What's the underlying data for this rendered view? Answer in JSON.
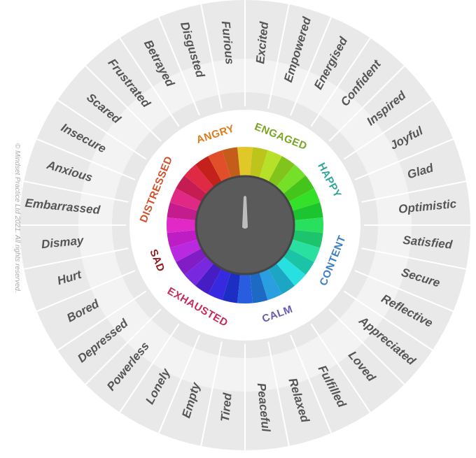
{
  "words": [
    "Excited",
    "Empowered",
    "Energised",
    "Confident",
    "Inspired",
    "Joyful",
    "Glad",
    "Optimistic",
    "Satisfied",
    "Secure",
    "Reflective",
    "Appreciated",
    "Loved",
    "Fulfilled",
    "Relaxed",
    "Peaceful",
    "Tired",
    "Empty",
    "Lonely",
    "Powerless",
    "Depressed",
    "Bored",
    "Hurt",
    "Dismay",
    "Embarrassed",
    "Anxious",
    "Insecure",
    "Scared",
    "Frustrated",
    "Betrayed",
    "Disgusted",
    "Furious"
  ],
  "categories": [
    "ANGRY",
    "ENGAGED",
    "HAPPY",
    "CONTENT",
    "CALM",
    "EXHAUSTED",
    "SAD",
    "DISTRESSED"
  ],
  "copyright": "© Mindset Practice Ltd 2021. All rights reserved."
}
